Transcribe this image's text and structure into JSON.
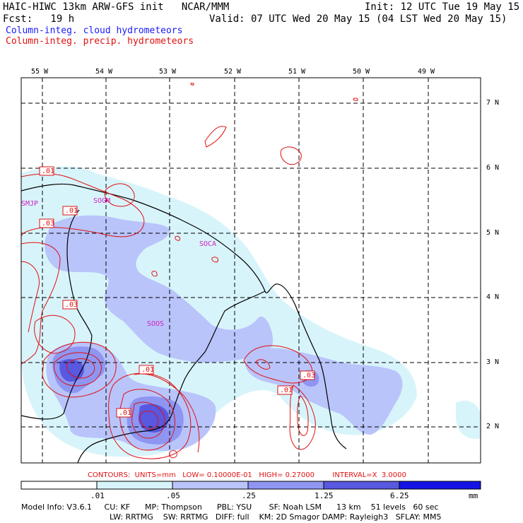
{
  "header": {
    "title": "HAIC-HIWC 13km ARW-GFS init   NCAR/MMM",
    "fcst": "Fcst:   19 h",
    "init": "Init: 12 UTC Tue 19 May 15",
    "valid": "Valid: 07 UTC Wed 20 May 15 (04 LST Wed 20 May 15)",
    "legend_cloud": "Column-integ. cloud hydrometeors",
    "legend_precip": "Column-integ. precip. hydrometeors"
  },
  "map": {
    "lon_labels": [
      "55 W",
      "54 W",
      "53 W",
      "52 W",
      "51 W",
      "50 W",
      "49 W"
    ],
    "lat_labels": [
      "7 N",
      "6 N",
      "5 N",
      "4 N",
      "3 N",
      "2 N"
    ],
    "stations": [
      "SMJP",
      "SOGM",
      "SOCA",
      "SOOS"
    ],
    "contour_labels": [
      ".01",
      ".01",
      ".03",
      ".03",
      ".01",
      ".03",
      ".01",
      ".01"
    ],
    "colors": {
      "cloud_light": "#d8f4fb",
      "cloud_1": "#b9c4fb",
      "cloud_2": "#8e96f2",
      "cloud_3": "#5858e0",
      "cloud_4": "#1414e6",
      "precip_contour": "#e01010",
      "coast": "#000000"
    }
  },
  "contours_line": "CONTOURS:  UNITS=mm   LOW= 0.10000E-01   HIGH= 0.27000        INTERVAL=X  3.0000",
  "colorbar": {
    "ticks": [
      ".01",
      ".05",
      ".25",
      "1.25",
      "6.25"
    ],
    "unit": "mm",
    "colors": [
      "#ffffff",
      "#d8f4fb",
      "#b9c4fb",
      "#8e96f2",
      "#5858e0",
      "#1414e6"
    ]
  },
  "footer": {
    "line1": "Model Info: V3.6.1     CU: KF      MP: Thompson      PBL: YSU       SF: Noah LSM      13 km    51 levels   60 sec",
    "line2": "LW: RRTMG    SW: RRTMG   DIFF: full    KM: 2D Smagor DAMP: Rayleigh3   SFLAY: MM5"
  }
}
